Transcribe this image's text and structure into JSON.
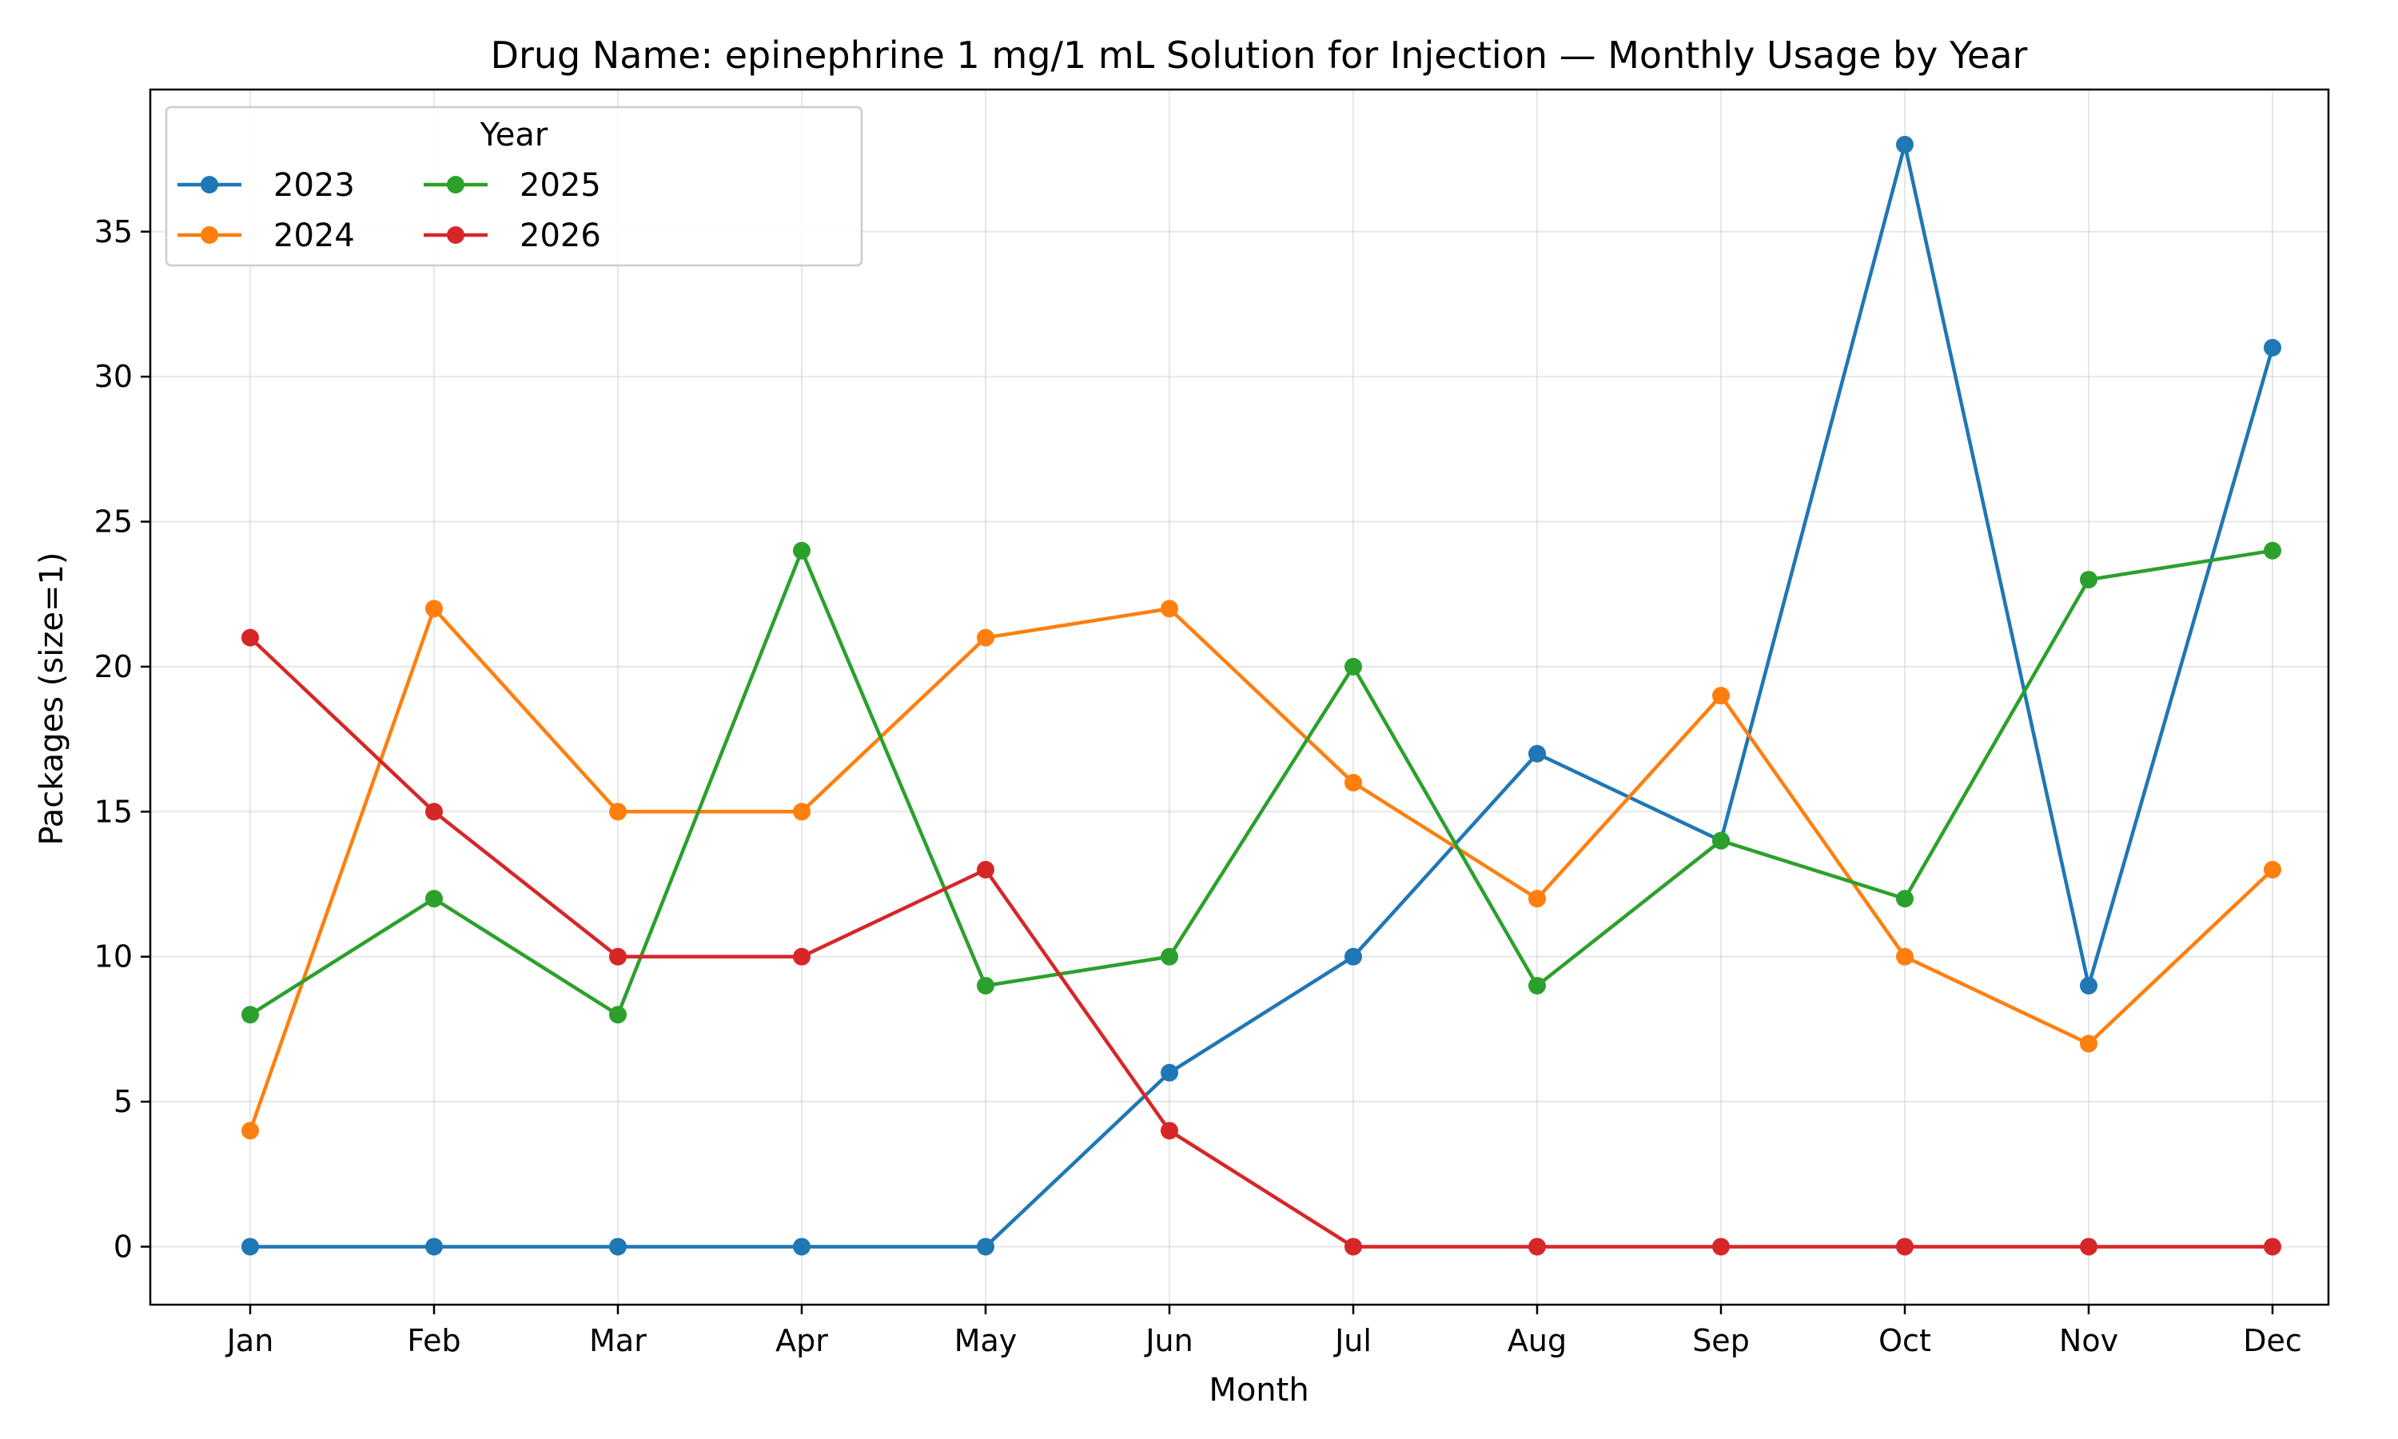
{
  "chart_data": {
    "type": "line",
    "title": "Drug Name: epinephrine 1 mg/1 mL Solution for Injection — Monthly Usage by Year",
    "xlabel": "Month",
    "ylabel": "Packages (size=1)",
    "categories": [
      "Jan",
      "Feb",
      "Mar",
      "Apr",
      "May",
      "Jun",
      "Jul",
      "Aug",
      "Sep",
      "Oct",
      "Nov",
      "Dec"
    ],
    "ylim": [
      -2,
      39.9
    ],
    "yticks": [
      0,
      5,
      10,
      15,
      20,
      25,
      30,
      35
    ],
    "grid": true,
    "legend": {
      "title": "Year",
      "placement": "top-left",
      "columns": 3
    },
    "series": [
      {
        "name": "2023",
        "color": "#1f77b4",
        "values": [
          0,
          0,
          0,
          0,
          0,
          6,
          10,
          17,
          14,
          38,
          9,
          31
        ]
      },
      {
        "name": "2024",
        "color": "#ff7f0e",
        "values": [
          4,
          22,
          15,
          15,
          21,
          22,
          16,
          12,
          19,
          10,
          7,
          13
        ]
      },
      {
        "name": "2025",
        "color": "#2ca02c",
        "values": [
          8,
          12,
          8,
          24,
          9,
          10,
          20,
          9,
          14,
          12,
          23,
          24
        ]
      },
      {
        "name": "2026",
        "color": "#d62728",
        "values": [
          21,
          15,
          10,
          10,
          13,
          4,
          0,
          0,
          0,
          0,
          0,
          0
        ]
      }
    ]
  }
}
